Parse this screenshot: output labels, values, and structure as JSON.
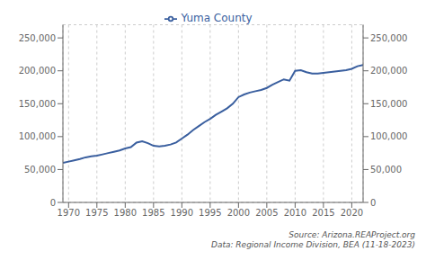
{
  "chart_data": {
    "type": "line",
    "annotation": "Source: Arizona.REAProject.org\nData: Regional Income Division, BEA (11-18-2023)",
    "x": [
      1969,
      1970,
      1971,
      1972,
      1973,
      1974,
      1975,
      1976,
      1977,
      1978,
      1979,
      1980,
      1981,
      1982,
      1983,
      1984,
      1985,
      1986,
      1987,
      1988,
      1989,
      1990,
      1991,
      1992,
      1993,
      1994,
      1995,
      1996,
      1997,
      1998,
      1999,
      2000,
      2001,
      2002,
      2003,
      2004,
      2005,
      2006,
      2007,
      2008,
      2009,
      2010,
      2011,
      2012,
      2013,
      2014,
      2015,
      2016,
      2017,
      2018,
      2019,
      2020,
      2021,
      2022
    ],
    "series": [
      {
        "name": "Yuma County",
        "color": "#3a5f9f",
        "values": [
          60000,
          62000,
          64000,
          66000,
          68500,
          70000,
          71000,
          73000,
          75000,
          77000,
          79000,
          82000,
          84000,
          91000,
          93000,
          90000,
          86000,
          85000,
          86000,
          88000,
          91000,
          97000,
          103000,
          110000,
          116000,
          122000,
          127000,
          133000,
          138000,
          143000,
          150000,
          160000,
          164000,
          167000,
          169000,
          171000,
          174000,
          179000,
          183000,
          187000,
          185000,
          200000,
          201000,
          198000,
          196000,
          196000,
          197000,
          198000,
          199000,
          200000,
          201000,
          203000,
          207000,
          209000
        ]
      }
    ],
    "xlim": [
      1969,
      2022
    ],
    "xticks": [
      1970,
      1975,
      1980,
      1985,
      1990,
      1995,
      2000,
      2005,
      2010,
      2015,
      2020
    ],
    "ylim": [
      0,
      270000
    ],
    "yticks": [
      0,
      {
        "value": 50000,
        "label": "50,000"
      },
      {
        "value": 100000,
        "label": "100,000"
      },
      {
        "value": 150000,
        "label": "150,000"
      },
      {
        "value": 200000,
        "label": "200,000"
      },
      {
        "value": 250000,
        "label": "250,000"
      }
    ],
    "y2lim": [
      0,
      270000
    ],
    "y2ticks": [
      0,
      {
        "value": 50000,
        "label": "50,000"
      },
      {
        "value": 100000,
        "label": "100,000"
      },
      {
        "value": 150000,
        "label": "150,000"
      },
      {
        "value": 200000,
        "label": "200,000"
      },
      {
        "value": 250000,
        "label": "250,000"
      }
    ],
    "grid": true,
    "legend": "top"
  }
}
